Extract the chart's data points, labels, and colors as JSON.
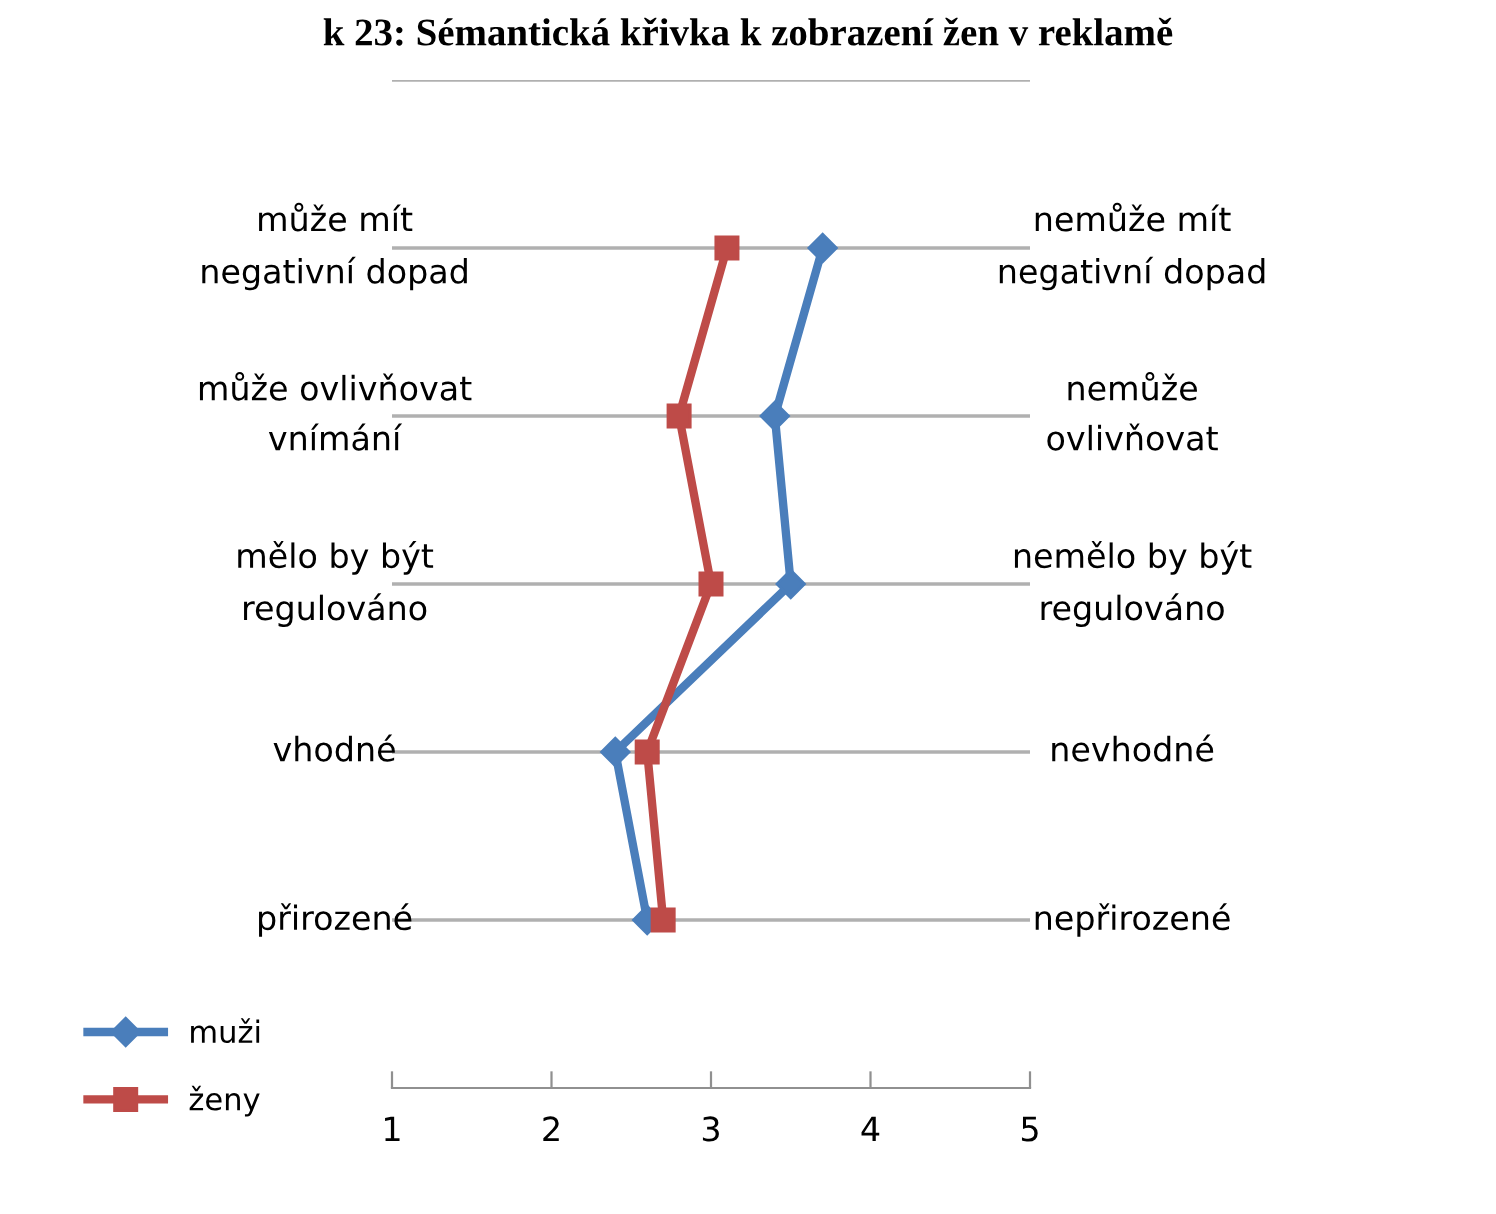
{
  "chart_data": {
    "type": "line",
    "orientation": "horizontal",
    "title": "k 23: Sémantická křivka k zobrazení žen v reklamě",
    "categories": [
      null,
      "může mít\nnegativní dopad",
      "může ovlivňovat\nvnímání",
      "mělo by být\nregulováno",
      "vhodné",
      "přirozené"
    ],
    "y2_categories": [
      null,
      "nemůže mít\nnegativní dopad",
      "nemůže\novlivňovat",
      "nemělo by být\nregulováno",
      "nevhodné",
      "nepřirozené"
    ],
    "series": [
      {
        "name": "muži",
        "color": "#4a7ebb",
        "marker": "diamond",
        "values": [
          null,
          3.7,
          3.4,
          3.5,
          2.4,
          2.6
        ]
      },
      {
        "name": "ženy",
        "color": "#be4b48",
        "marker": "square",
        "values": [
          null,
          3.1,
          2.8,
          3.0,
          2.6,
          2.7
        ]
      }
    ],
    "xlim": [
      1,
      5
    ],
    "xticks": [
      1,
      2,
      3,
      4,
      5
    ],
    "grid": "y",
    "legend": "bottom left"
  }
}
